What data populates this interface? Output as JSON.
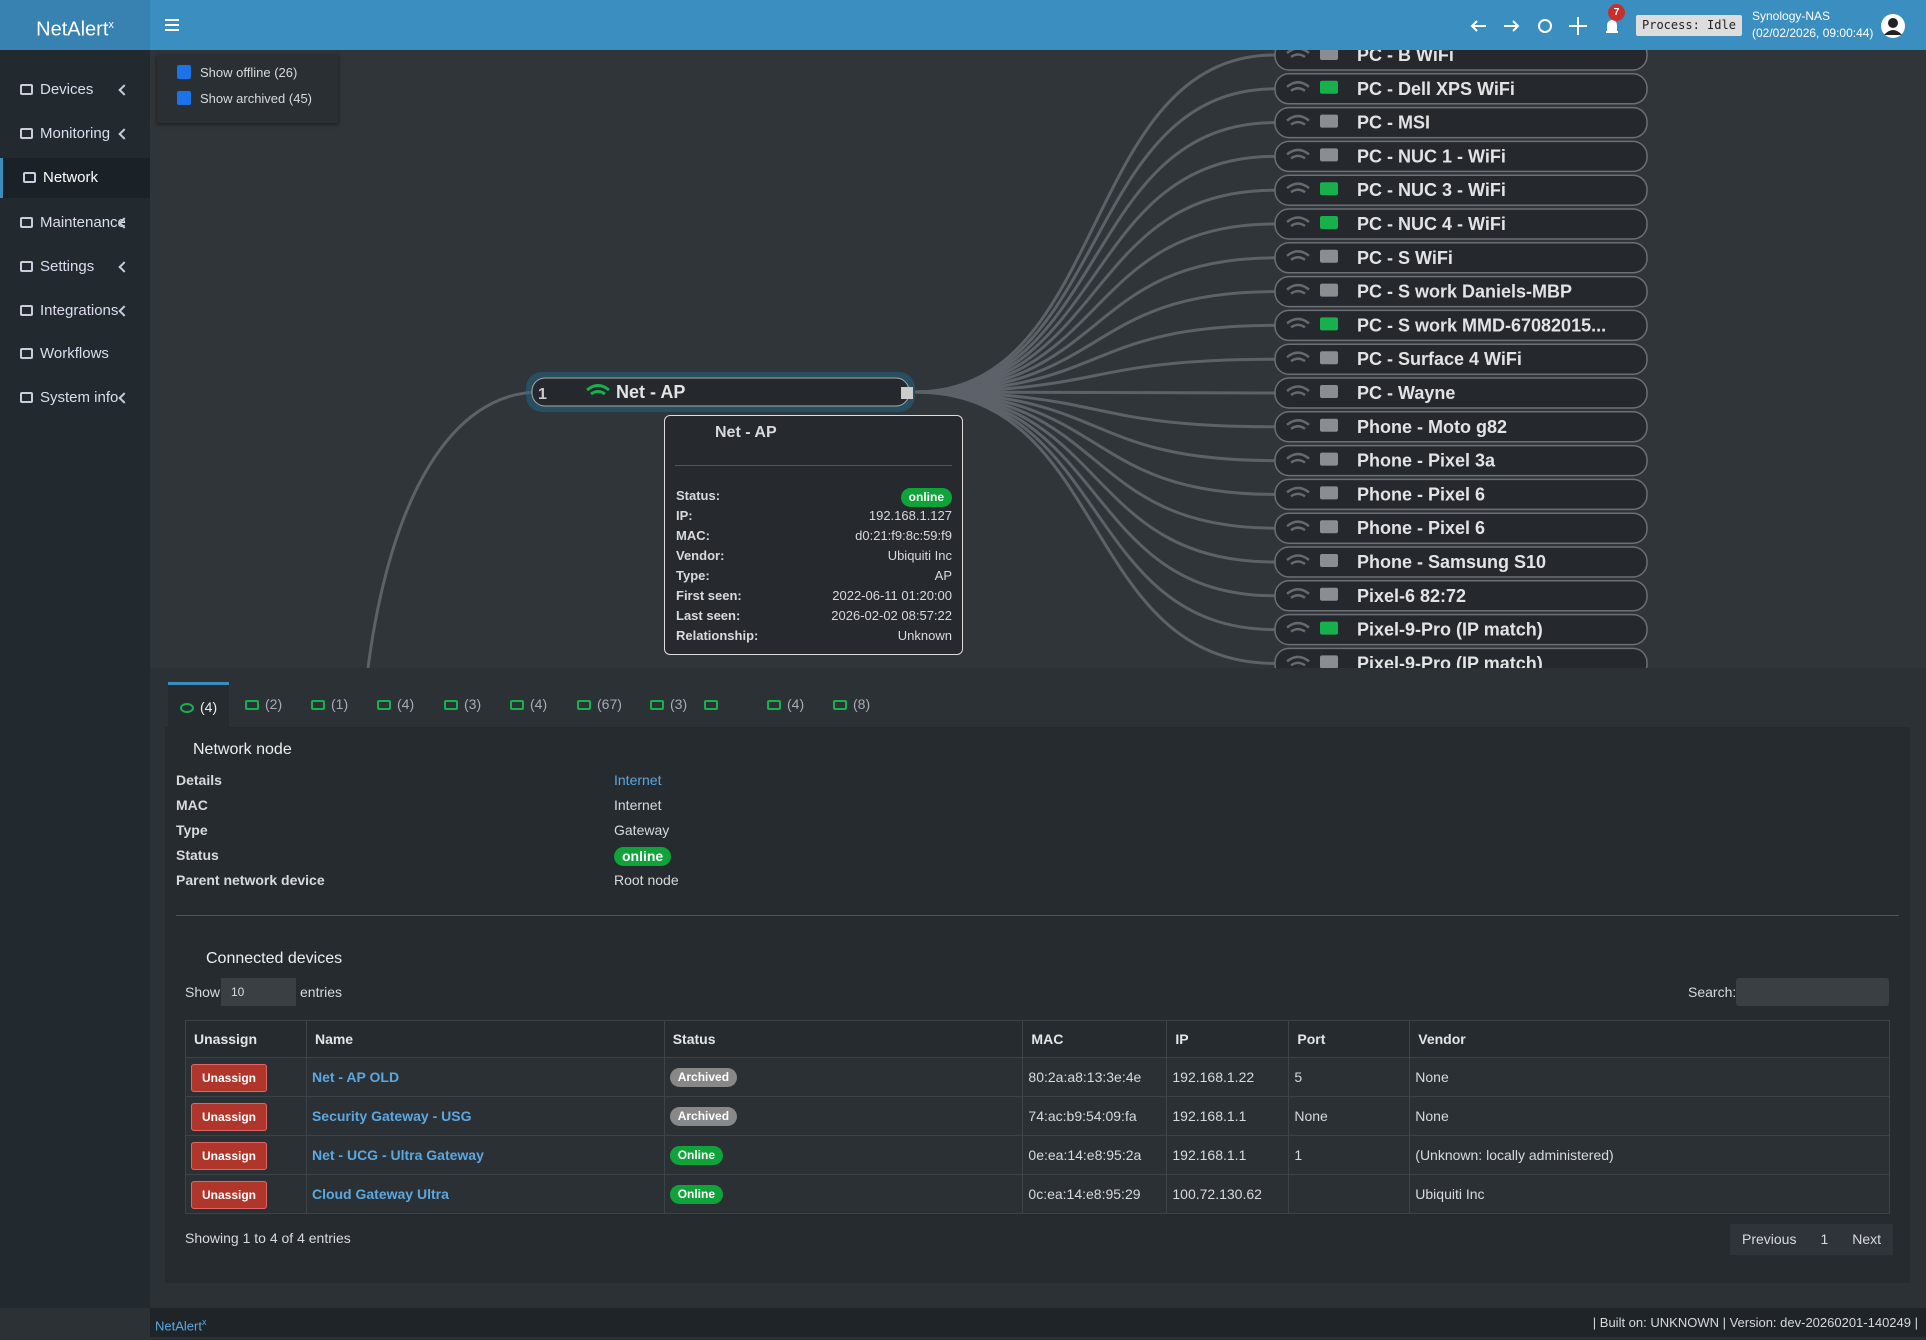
{
  "header": {
    "brand": "NetAlert",
    "brand_sup": "x",
    "notifications": "7",
    "process": "Process: Idle",
    "host": "Synology-NAS",
    "datetime": "(02/02/2026, 09:00:44)"
  },
  "sidebar": {
    "items": [
      "Devices",
      "Monitoring",
      "Network",
      "Maintenance",
      "Settings",
      "Integrations",
      "Workflows",
      "System info"
    ]
  },
  "filters": [
    "Show offline (26)",
    "Show archived (45)"
  ],
  "tree": {
    "root": "Net - AP",
    "root_count": "1",
    "leaves": [
      "PC - B WiFi",
      "PC - Dell XPS WiFi",
      "PC - MSI",
      "PC - NUC 1 - WiFi",
      "PC - NUC 3 - WiFi",
      "PC - NUC 4 - WiFi",
      "PC - S WiFi",
      "PC - S work Daniels-MBP",
      "PC - S work MMD-67082015...",
      "PC - Surface 4 WiFi",
      "PC - Wayne",
      "Phone - Moto g82",
      "Phone - Pixel 3a",
      "Phone - Pixel 6",
      "Phone - Pixel 6",
      "Phone - Samsung S10",
      "Pixel-6 82:72",
      "Pixel-9-Pro (IP match)",
      "Pixel-9-Pro (IP match)"
    ]
  },
  "tooltip": {
    "title": "Net - AP",
    "fields": [
      {
        "label": "Status:",
        "value": "online"
      },
      {
        "label": "IP:",
        "value": "192.168.1.127"
      },
      {
        "label": "MAC:",
        "value": "d0:21:f9:8c:59:f9"
      },
      {
        "label": "Vendor:",
        "value": "Ubiquiti Inc"
      },
      {
        "label": "Type:",
        "value": "AP"
      },
      {
        "label": "First seen:",
        "value": "2022-06-11 01:20:00"
      },
      {
        "label": "Last seen:",
        "value": "2026-02-02 08:57:22"
      },
      {
        "label": "Relationship:",
        "value": "Unknown"
      }
    ]
  },
  "tabs": [
    "(4)",
    "(2)",
    "(1)",
    "(4)",
    "(3)",
    "(4)",
    "(67)",
    "(3)",
    "(4)",
    "(8)"
  ],
  "node_panel": {
    "title": "Network node",
    "rows": [
      {
        "label": "Details",
        "value": "Internet"
      },
      {
        "label": "MAC",
        "value": "Internet"
      },
      {
        "label": "Type",
        "value": "Gateway"
      },
      {
        "label": "Status",
        "value": "online"
      },
      {
        "label": "Parent network device",
        "value": "Root node"
      }
    ]
  },
  "connected": {
    "title": "Connected devices",
    "show": "Show",
    "page_size": "10",
    "entries": "entries",
    "search": "Search:",
    "columns": [
      "Unassign",
      "Name",
      "Status",
      "MAC",
      "IP",
      "Port",
      "Vendor"
    ],
    "rows": [
      [
        "Unassign",
        "Net - AP OLD",
        "Archived",
        "80:2a:a8:13:3e:4e",
        "192.168.1.22",
        "5",
        "None"
      ],
      [
        "Unassign",
        "Security Gateway - USG",
        "Archived",
        "74:ac:b9:54:09:fa",
        "192.168.1.1",
        "None",
        "None"
      ],
      [
        "Unassign",
        "Net - UCG - Ultra Gateway",
        "Online",
        "0e:ea:14:e8:95:2a",
        "192.168.1.1",
        "1",
        "(Unknown: locally administered)"
      ],
      [
        "Unassign",
        "Cloud Gateway Ultra",
        "Online",
        "0c:ea:14:e8:95:29",
        "100.72.130.62",
        null,
        "Ubiquiti Inc"
      ]
    ],
    "info": "Showing 1 to 4 of 4 entries",
    "pagination": [
      "Previous",
      "1",
      "Next"
    ]
  },
  "footer": {
    "brand": "NetAlert",
    "brand_sup": "x",
    "build": "| Built on: UNKNOWN | Version: dev-20260201-140249 |"
  }
}
